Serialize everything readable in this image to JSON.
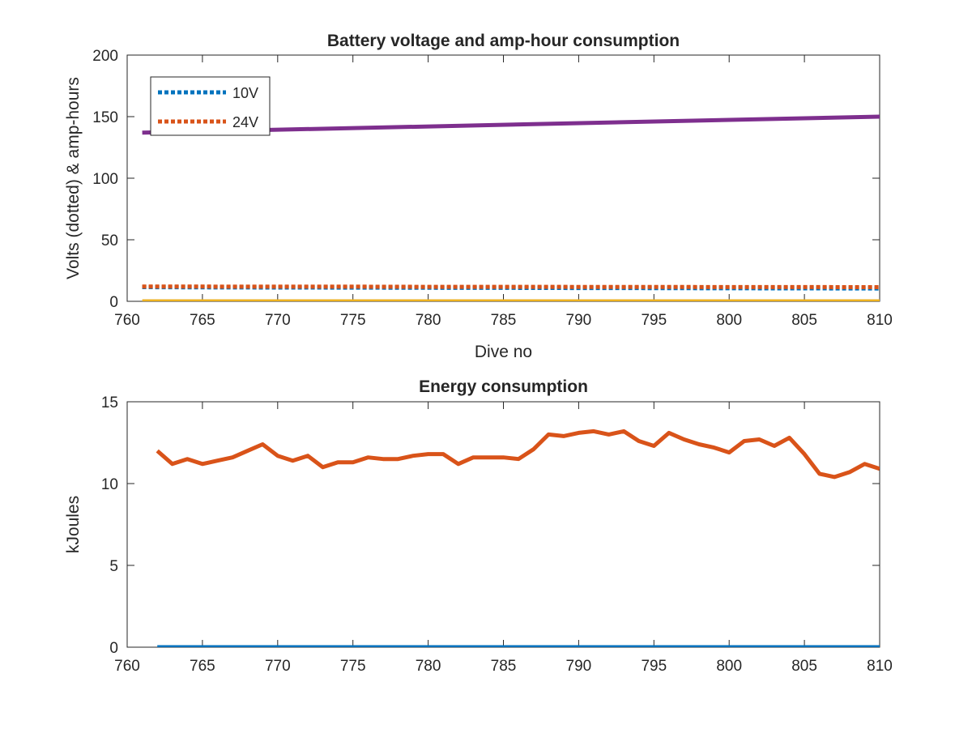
{
  "chart_data": [
    {
      "type": "line",
      "title": "Battery voltage and amp-hour consumption",
      "xlabel": "Dive no",
      "ylabel": "Volts (dotted) & amp-hours",
      "xlim": [
        760,
        810
      ],
      "ylim": [
        0,
        200
      ],
      "xticks": [
        760,
        765,
        770,
        775,
        780,
        785,
        790,
        795,
        800,
        805,
        810
      ],
      "yticks": [
        0,
        50,
        100,
        150,
        200
      ],
      "grid": false,
      "legend_position": "top-left",
      "series": [
        {
          "name": "10V",
          "style": "dotted",
          "color": "#0072BD",
          "x": [
            761,
            765,
            770,
            775,
            780,
            785,
            790,
            795,
            800,
            805,
            810
          ],
          "y": [
            11.5,
            11.3,
            11.2,
            11.1,
            11.0,
            10.9,
            10.8,
            10.7,
            10.6,
            10.5,
            10.4
          ]
        },
        {
          "name": "24V",
          "style": "dotted",
          "color": "#D95319",
          "x": [
            761,
            765,
            770,
            775,
            780,
            785,
            790,
            795,
            800,
            805,
            810
          ],
          "y": [
            12.0,
            12.0,
            11.9,
            11.9,
            11.8,
            11.8,
            11.7,
            11.7,
            11.6,
            11.6,
            11.5
          ]
        },
        {
          "style": "solid",
          "color": "#EDB120",
          "x": [
            761,
            810
          ],
          "y": [
            0,
            0
          ]
        },
        {
          "style": "solid",
          "color": "#7E2F8E",
          "x": [
            761,
            810
          ],
          "y": [
            137,
            150
          ]
        }
      ]
    },
    {
      "type": "line",
      "title": "Energy consumption",
      "xlabel": "",
      "ylabel": "kJoules",
      "xlim": [
        760,
        810
      ],
      "ylim": [
        0,
        15
      ],
      "xticks": [
        760,
        765,
        770,
        775,
        780,
        785,
        790,
        795,
        800,
        805,
        810
      ],
      "yticks": [
        0,
        5,
        10,
        15
      ],
      "grid": false,
      "series": [
        {
          "style": "solid",
          "color": "#D95319",
          "x": [
            762,
            763,
            764,
            765,
            766,
            767,
            768,
            769,
            770,
            771,
            772,
            773,
            774,
            775,
            776,
            777,
            778,
            779,
            780,
            781,
            782,
            783,
            784,
            785,
            786,
            787,
            788,
            789,
            790,
            791,
            792,
            793,
            794,
            795,
            796,
            797,
            798,
            799,
            800,
            801,
            802,
            803,
            804,
            805,
            806,
            807,
            808,
            809,
            810
          ],
          "y": [
            12.0,
            11.2,
            11.5,
            11.2,
            11.4,
            11.6,
            12.0,
            12.4,
            11.7,
            11.4,
            11.7,
            11.0,
            11.3,
            11.3,
            11.6,
            11.5,
            11.5,
            11.7,
            11.8,
            11.8,
            11.2,
            11.6,
            11.6,
            11.6,
            11.5,
            12.1,
            13.0,
            12.9,
            13.1,
            13.2,
            13.0,
            13.2,
            12.6,
            12.3,
            13.1,
            12.7,
            12.4,
            12.2,
            11.9,
            12.6,
            12.7,
            12.3,
            12.8,
            11.8,
            10.6,
            10.4,
            10.7,
            11.2,
            10.9
          ]
        },
        {
          "style": "solid",
          "color": "#0072BD",
          "x": [
            762,
            810
          ],
          "y": [
            0,
            0
          ]
        }
      ]
    }
  ]
}
